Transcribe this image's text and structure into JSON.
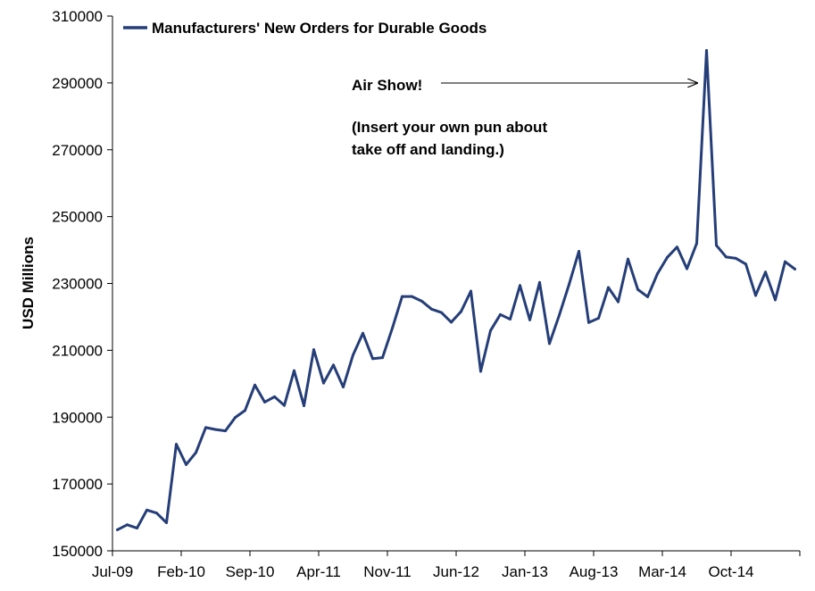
{
  "chart_data": {
    "type": "line",
    "title": "",
    "xlabel": "",
    "ylabel": "USD Millions",
    "ylim": [
      150000,
      310000
    ],
    "yticks": [
      150000,
      170000,
      190000,
      210000,
      230000,
      250000,
      270000,
      290000,
      310000
    ],
    "ytick_labels": [
      "150000",
      "170000",
      "190000",
      "210000",
      "230000",
      "250000",
      "270000",
      "290000",
      "310000"
    ],
    "xtick_labels": [
      "Jul-09",
      "Feb-10",
      "Sep-10",
      "Apr-11",
      "Nov-11",
      "Jun-12",
      "Jan-13",
      "Aug-13",
      "Mar-14",
      "Oct-14"
    ],
    "grid": false,
    "legend": {
      "placement": "top-left",
      "entries": [
        "Manufacturers' New Orders for Durable Goods"
      ]
    },
    "series": [
      {
        "name": "Manufacturers' New Orders for Durable Goods",
        "color": "#253e78",
        "x": [
          "Jul-09",
          "Aug-09",
          "Sep-09",
          "Oct-09",
          "Nov-09",
          "Dec-09",
          "Jan-10",
          "Feb-10",
          "Mar-10",
          "Apr-10",
          "May-10",
          "Jun-10",
          "Jul-10",
          "Aug-10",
          "Sep-10",
          "Oct-10",
          "Nov-10",
          "Dec-10",
          "Jan-11",
          "Feb-11",
          "Mar-11",
          "Apr-11",
          "May-11",
          "Jun-11",
          "Jul-11",
          "Aug-11",
          "Sep-11",
          "Oct-11",
          "Nov-11",
          "Dec-11",
          "Jan-12",
          "Feb-12",
          "Mar-12",
          "Apr-12",
          "May-12",
          "Jun-12",
          "Jul-12",
          "Aug-12",
          "Sep-12",
          "Oct-12",
          "Nov-12",
          "Dec-12",
          "Jan-13",
          "Feb-13",
          "Mar-13",
          "Apr-13",
          "May-13",
          "Jun-13",
          "Jul-13",
          "Aug-13",
          "Sep-13",
          "Oct-13",
          "Nov-13",
          "Dec-13",
          "Jan-14",
          "Feb-14",
          "Mar-14",
          "Apr-14",
          "May-14",
          "Jun-14",
          "Jul-14",
          "Aug-14",
          "Sep-14",
          "Oct-14",
          "Nov-14",
          "Dec-14",
          "Jan-15",
          "Feb-15",
          "Mar-15",
          "Apr-15"
        ],
        "values": [
          156300,
          157800,
          156800,
          162200,
          161300,
          158400,
          181900,
          175800,
          179400,
          186900,
          186300,
          185900,
          189900,
          192000,
          199600,
          194500,
          196100,
          193500,
          203900,
          193400,
          210200,
          200200,
          205600,
          199000,
          208600,
          215100,
          207500,
          207800,
          216600,
          226100,
          226100,
          224700,
          222300,
          221300,
          218400,
          221600,
          227700,
          203700,
          215900,
          220700,
          219300,
          229400,
          219100,
          230300,
          212000,
          220500,
          229700,
          239600,
          218300,
          219600,
          228800,
          224500,
          237300,
          228200,
          226000,
          232900,
          237800,
          240900,
          234400,
          242000,
          299700,
          241400,
          237900,
          237500,
          235800,
          226400,
          233400,
          225100,
          236500,
          234300
        ]
      }
    ],
    "annotations": [
      {
        "text": "Air Show!",
        "points_to": "Jul-14"
      },
      {
        "text": "(Insert your own pun about"
      },
      {
        "text": "take off and landing.)"
      }
    ]
  }
}
